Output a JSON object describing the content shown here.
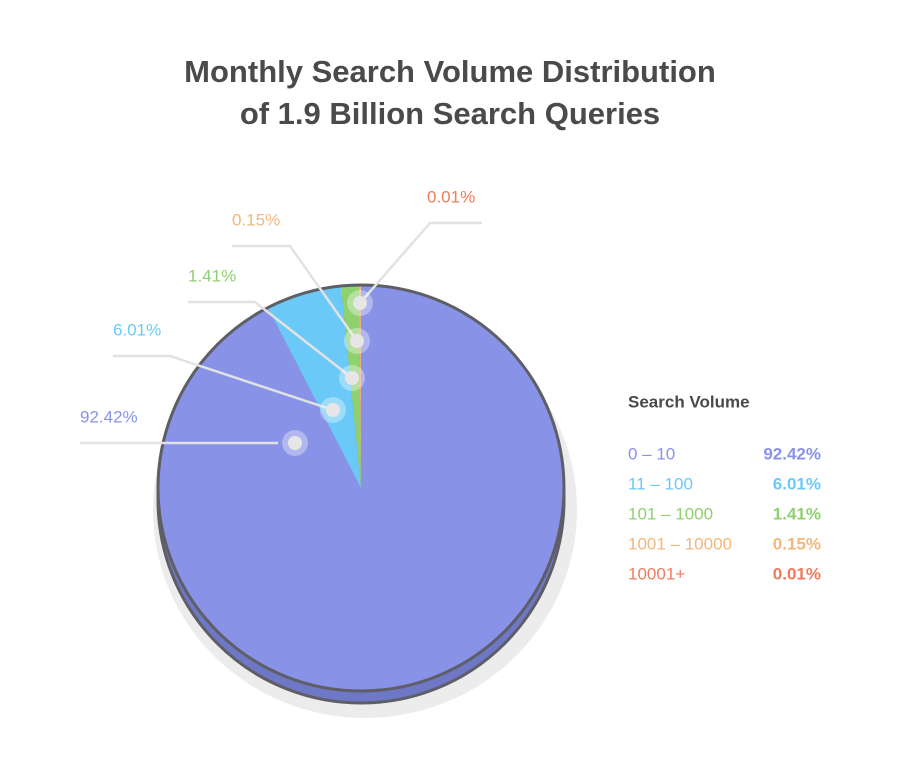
{
  "chart_data": {
    "type": "pie",
    "title": [
      "Monthly Search Volume Distribution",
      "of 1.9 Billion Search Queries"
    ],
    "legend_title": "Search Volume",
    "categories": [
      "0 – 10",
      "11 – 100",
      "101 – 1000",
      "1001 – 10000",
      "10001+"
    ],
    "values": [
      92.42,
      6.01,
      1.41,
      0.15,
      0.01
    ],
    "value_labels": [
      "92.42%",
      "6.01%",
      "1.41%",
      "0.15%",
      "0.01%"
    ],
    "colors": [
      "#8893e8",
      "#6bc9f7",
      "#8fd06f",
      "#f4b67a",
      "#ef7b5c"
    ],
    "legend": "right"
  }
}
